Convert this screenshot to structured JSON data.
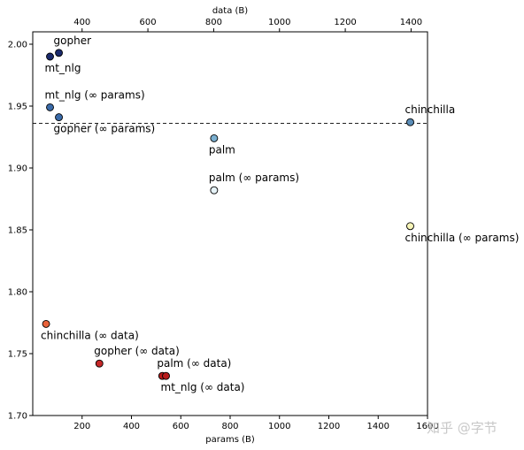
{
  "chart_data": {
    "type": "scatter",
    "title": "",
    "xlabel": "params (B)",
    "ylabel": "",
    "x2label": "data (B)",
    "xlim": [
      0,
      1600
    ],
    "ylim": [
      1.7,
      2.01
    ],
    "x2lim": [
      250,
      1450
    ],
    "xticks": [
      "200",
      "400",
      "600",
      "800",
      "1000",
      "1200",
      "1400",
      "1600"
    ],
    "yticks": [
      "1.70",
      "1.75",
      "1.80",
      "1.85",
      "1.90",
      "1.95",
      "2.00"
    ],
    "x2ticks": [
      "400",
      "600",
      "800",
      "1000",
      "1200",
      "1400"
    ],
    "grid": false,
    "reference_line": {
      "y": 1.936,
      "style": "dashed"
    },
    "points": [
      {
        "label": "gopher",
        "x": 106,
        "y": 1.993,
        "color": "#1a2a6c",
        "label_pos": "above"
      },
      {
        "label": "mt_nlg",
        "x": 70,
        "y": 1.99,
        "color": "#1a2a6c",
        "label_pos": "below"
      },
      {
        "label": "mt_nlg (∞ params)",
        "x": 70,
        "y": 1.949,
        "color": "#3a6aa8",
        "label_pos": "above"
      },
      {
        "label": "gopher (∞ params)",
        "x": 106,
        "y": 1.941,
        "color": "#3a6aa8",
        "label_pos": "below"
      },
      {
        "label": "chinchilla",
        "x": 1530,
        "y": 1.937,
        "color": "#5b8db8",
        "label_pos": "above"
      },
      {
        "label": "palm",
        "x": 735,
        "y": 1.924,
        "color": "#7aafd0",
        "label_pos": "below"
      },
      {
        "label": "palm (∞ params)",
        "x": 735,
        "y": 1.882,
        "color": "#e6f3f8",
        "label_pos": "above"
      },
      {
        "label": "chinchilla (∞ params)",
        "x": 1530,
        "y": 1.853,
        "color": "#f7f5b8",
        "label_pos": "below"
      },
      {
        "label": "chinchilla (∞ data)",
        "x": 54,
        "y": 1.774,
        "color": "#e8623a",
        "label_pos": "below"
      },
      {
        "label": "gopher (∞ data)",
        "x": 270,
        "y": 1.742,
        "color": "#c62828",
        "label_pos": "above"
      },
      {
        "label": "palm (∞ data)",
        "x": 525,
        "y": 1.732,
        "color": "#b71c1c",
        "label_pos": "above"
      },
      {
        "label": "mt_nlg (∞ data)",
        "x": 540,
        "y": 1.732,
        "color": "#b71c1c",
        "label_pos": "below"
      }
    ]
  },
  "watermark": "知乎 @字节"
}
